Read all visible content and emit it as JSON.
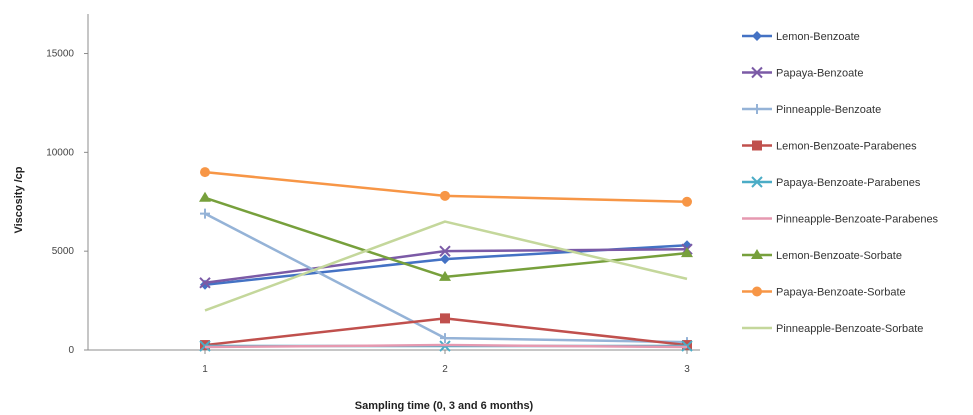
{
  "chart_data": {
    "type": "line",
    "title": "",
    "xlabel": "Sampling time (0, 3 and 6 months)",
    "ylabel": "Viscosity /cp",
    "categories": [
      "1",
      "2",
      "3"
    ],
    "ylim": [
      0,
      17000
    ],
    "yticks": [
      0,
      5000,
      10000,
      15000
    ],
    "grid": false,
    "legend_position": "right",
    "series": [
      {
        "name": "Lemon-Benzoate",
        "values": [
          3300,
          4600,
          5300
        ],
        "color": "#4472c4",
        "marker": "diamond"
      },
      {
        "name": "Papaya-Benzoate",
        "values": [
          3400,
          5000,
          5100
        ],
        "color": "#7b5aa6",
        "marker": "x"
      },
      {
        "name": "Pinneapple-Benzoate",
        "values": [
          6900,
          600,
          400
        ],
        "color": "#95b3d7",
        "marker": "plus"
      },
      {
        "name": "Lemon-Benzoate-Parabenes",
        "values": [
          250,
          1600,
          250
        ],
        "color": "#c0504d",
        "marker": "square"
      },
      {
        "name": "Papaya-Benzoate-Parabenes",
        "values": [
          200,
          200,
          200
        ],
        "color": "#4bacc6",
        "marker": "x"
      },
      {
        "name": "Pinneapple-Benzoate-Parabenes",
        "values": [
          150,
          250,
          150
        ],
        "color": "#e699b0",
        "marker": "line"
      },
      {
        "name": "Lemon-Benzoate-Sorbate",
        "values": [
          7700,
          3700,
          4900
        ],
        "color": "#77a03c",
        "marker": "triangle"
      },
      {
        "name": "Papaya-Benzoate-Sorbate",
        "values": [
          9000,
          7800,
          7500
        ],
        "color": "#f79646",
        "marker": "circle"
      },
      {
        "name": "Pinneapple-Benzoate-Sorbate",
        "values": [
          2000,
          6500,
          3600
        ],
        "color": "#c4d79b",
        "marker": "line"
      }
    ]
  }
}
